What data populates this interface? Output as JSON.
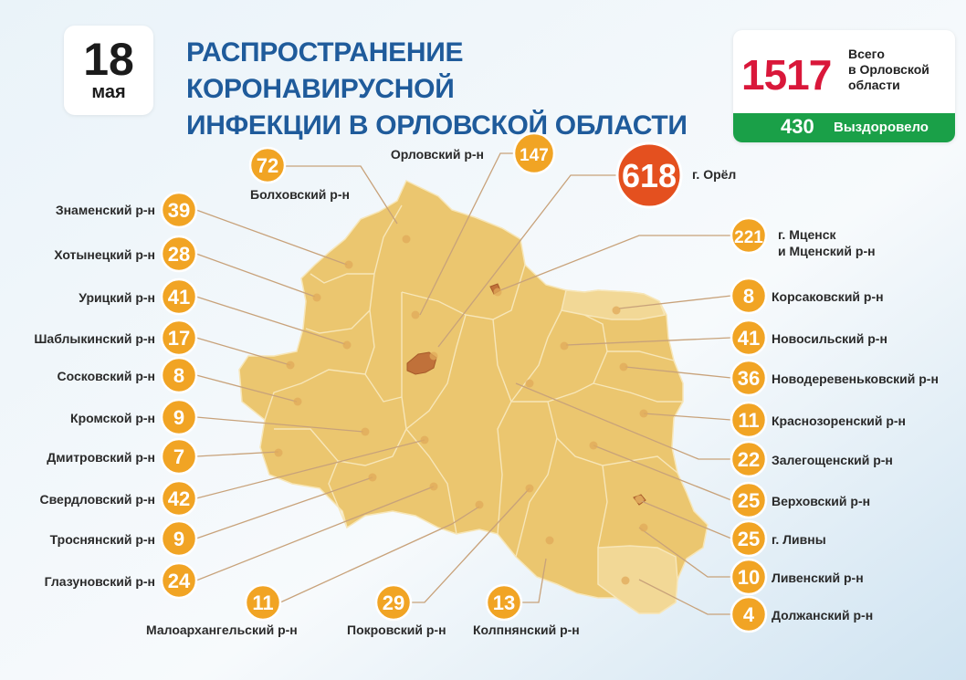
{
  "header": {
    "date_day": "18",
    "date_month": "мая",
    "title_line1": "РАСПРОСТРАНЕНИЕ КОРОНАВИРУСНОЙ",
    "title_line2": "ИНФЕКЦИИ В ОРЛОВСКОЙ ОБЛАСТИ"
  },
  "totals": {
    "total": "1517",
    "total_label_line1": "Всего",
    "total_label_line2": "в Орловской",
    "total_label_line3": "области",
    "recovered": "430",
    "recovered_label": "Выздоровело"
  },
  "colors": {
    "map_fill": "#ebc66f",
    "map_fill_light": "#f2d896",
    "city_fill": "#c0713a",
    "badge": "#f1a424",
    "badge_large": "#e4501f",
    "badge_orange": "#f08a24",
    "leader": "#c8a27a"
  },
  "districts": [
    {
      "name": "Болховский р-н",
      "count": "72"
    },
    {
      "name": "Орловский р-н",
      "count": "147"
    },
    {
      "name": "г. Орёл",
      "count": "618"
    },
    {
      "name": "Знаменский р-н",
      "count": "39"
    },
    {
      "name": "Хотынецкий р-н",
      "count": "28"
    },
    {
      "name": "Урицкий р-н",
      "count": "41"
    },
    {
      "name": "Шаблыкинский р-н",
      "count": "17"
    },
    {
      "name": "Сосковский р-н",
      "count": "8"
    },
    {
      "name": "Кромской р-н",
      "count": "9"
    },
    {
      "name": "Дмитровский р-н",
      "count": "7"
    },
    {
      "name": "Свердловский р-н",
      "count": "42"
    },
    {
      "name": "Троснянский р-н",
      "count": "9"
    },
    {
      "name": "Глазуновский р-н",
      "count": "24"
    },
    {
      "name": "Малоархангельский р-н",
      "count": "11"
    },
    {
      "name": "Покровский р-н",
      "count": "29"
    },
    {
      "name": "Колпнянский р-н",
      "count": "13"
    },
    {
      "name": "г. Мценск",
      "name2": "и Мценский р-н",
      "count": "221"
    },
    {
      "name": "Корсаковский р-н",
      "count": "8"
    },
    {
      "name": "Новосильский р-н",
      "count": "41"
    },
    {
      "name": "Новодеревеньковский р-н",
      "count": "36"
    },
    {
      "name": "Краснозоренский р-н",
      "count": "11"
    },
    {
      "name": "Залегощенский р-н",
      "count": "22"
    },
    {
      "name": "Верховский р-н",
      "count": "25"
    },
    {
      "name": "г. Ливны",
      "count": "25"
    },
    {
      "name": "Ливенский р-н",
      "count": "10"
    },
    {
      "name": "Должанский р-н",
      "count": "4"
    }
  ]
}
